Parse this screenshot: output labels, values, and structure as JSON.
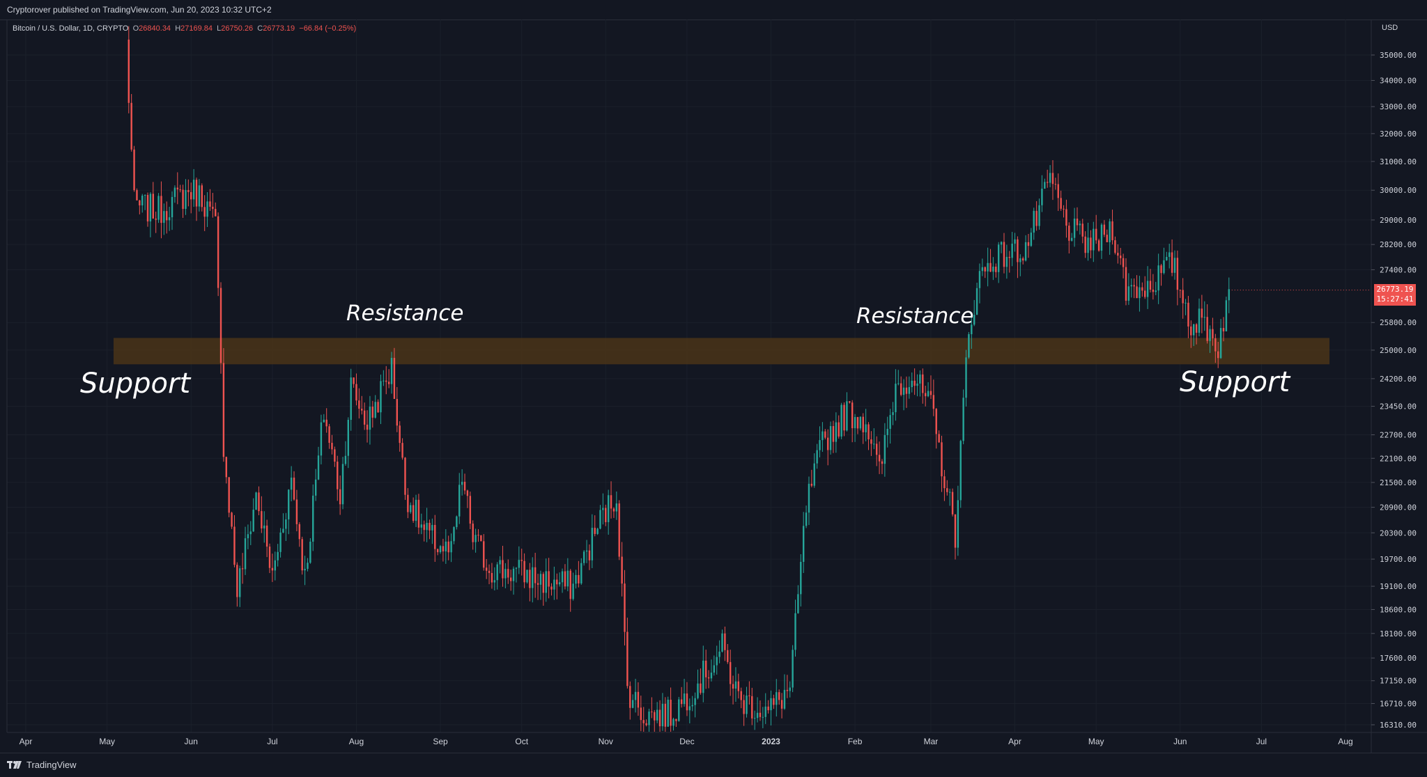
{
  "header": {
    "publisher": "Cryptorover published on TradingView.com, Jun 20, 2023 10:32 UTC+2"
  },
  "legend": {
    "symbol": "Bitcoin / U.S. Dollar, 1D, CRYPTO",
    "open_label": "O",
    "open": "26840.34",
    "high_label": "H",
    "high": "27169.84",
    "low_label": "L",
    "low": "26750.26",
    "close_label": "C",
    "close": "26773.19",
    "change": "−66.84 (−0.25%)"
  },
  "price_axis": {
    "currency": "USD",
    "last_price": "26773.19",
    "countdown": "15:27:41"
  },
  "annotations": {
    "support_left": "Support",
    "resistance_left": "Resistance",
    "resistance_right": "Resistance",
    "support_right": "Support"
  },
  "footer": {
    "brand": "TradingView"
  },
  "colors": {
    "background": "#131722",
    "up": "#26a69a",
    "down": "#ef5350",
    "zone": "#4a3418",
    "text": "#d1d4dc"
  },
  "chart_data": {
    "type": "candlestick",
    "title": "Bitcoin / U.S. Dollar, 1D, CRYPTO",
    "price_scale": "log",
    "ylim": [
      16100,
      36400
    ],
    "y_ticks": [
      35000,
      34000,
      33000,
      32000,
      31000,
      30000,
      29000,
      28200,
      27400,
      25800,
      25000,
      24200,
      23450,
      22700,
      22100,
      21500,
      20900,
      20300,
      19700,
      19100,
      18600,
      18100,
      17600,
      17150,
      16710,
      16310
    ],
    "x_labels": [
      "Apr",
      "May",
      "Jun",
      "Jul",
      "Aug",
      "Sep",
      "Oct",
      "Nov",
      "Dec",
      "2023",
      "Feb",
      "Mar",
      "Apr",
      "May",
      "Jun",
      "Jul",
      "Aug"
    ],
    "zone": {
      "low": 24600,
      "high": 25350
    },
    "anchors": [
      [
        "2022-05-08",
        35500
      ],
      [
        "2022-05-11",
        29500
      ],
      [
        "2022-05-20",
        29300
      ],
      [
        "2022-06-01",
        30000
      ],
      [
        "2022-06-05",
        29800
      ],
      [
        "2022-06-10",
        28800
      ],
      [
        "2022-06-13",
        22500
      ],
      [
        "2022-06-18",
        19000
      ],
      [
        "2022-06-25",
        21200
      ],
      [
        "2022-07-01",
        19300
      ],
      [
        "2022-07-08",
        21600
      ],
      [
        "2022-07-13",
        19300
      ],
      [
        "2022-07-20",
        23300
      ],
      [
        "2022-07-26",
        21200
      ],
      [
        "2022-07-30",
        24000
      ],
      [
        "2022-08-05",
        23000
      ],
      [
        "2022-08-14",
        24500
      ],
      [
        "2022-08-19",
        21300
      ],
      [
        "2022-08-26",
        20300
      ],
      [
        "2022-09-05",
        19800
      ],
      [
        "2022-09-09",
        21600
      ],
      [
        "2022-09-13",
        20200
      ],
      [
        "2022-09-19",
        19500
      ],
      [
        "2022-09-30",
        19400
      ],
      [
        "2022-10-10",
        19200
      ],
      [
        "2022-10-20",
        19100
      ],
      [
        "2022-10-30",
        20600
      ],
      [
        "2022-11-05",
        21200
      ],
      [
        "2022-11-09",
        17000
      ],
      [
        "2022-11-15",
        16500
      ],
      [
        "2022-11-25",
        16500
      ],
      [
        "2022-12-05",
        17100
      ],
      [
        "2022-12-14",
        17800
      ],
      [
        "2022-12-20",
        16800
      ],
      [
        "2022-12-31",
        16550
      ],
      [
        "2023-01-08",
        17000
      ],
      [
        "2023-01-14",
        20900
      ],
      [
        "2023-01-20",
        22500
      ],
      [
        "2023-01-29",
        23300
      ],
      [
        "2023-02-05",
        23100
      ],
      [
        "2023-02-10",
        21700
      ],
      [
        "2023-02-16",
        24000
      ],
      [
        "2023-02-22",
        24300
      ],
      [
        "2023-03-01",
        23400
      ],
      [
        "2023-03-10",
        20300
      ],
      [
        "2023-03-14",
        24600
      ],
      [
        "2023-03-18",
        27100
      ],
      [
        "2023-03-25",
        27800
      ],
      [
        "2023-04-05",
        28100
      ],
      [
        "2023-04-12",
        29800
      ],
      [
        "2023-04-14",
        30400
      ],
      [
        "2023-04-20",
        28800
      ],
      [
        "2023-04-26",
        28300
      ],
      [
        "2023-05-01",
        28200
      ],
      [
        "2023-05-07",
        28800
      ],
      [
        "2023-05-12",
        26800
      ],
      [
        "2023-05-20",
        26900
      ],
      [
        "2023-05-29",
        27600
      ],
      [
        "2023-06-05",
        25800
      ],
      [
        "2023-06-10",
        25800
      ],
      [
        "2023-06-15",
        25100
      ],
      [
        "2023-06-19",
        26800
      ]
    ]
  }
}
